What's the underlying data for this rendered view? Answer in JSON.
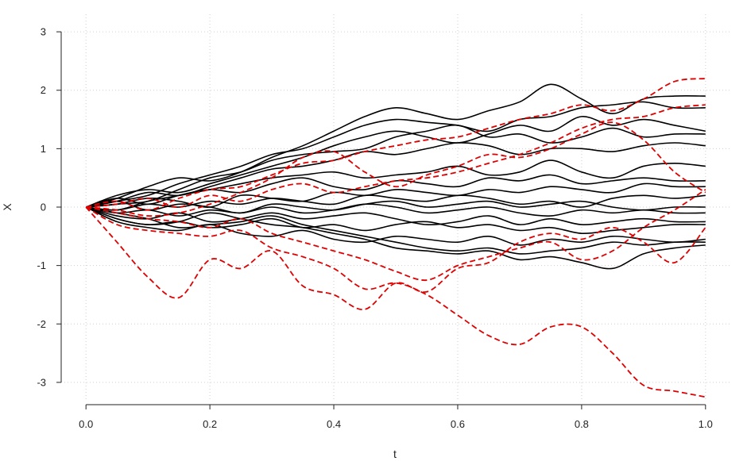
{
  "chart_data": {
    "type": "line",
    "xlabel": "t",
    "ylabel": "X",
    "xlim": [
      -0.04,
      1.04
    ],
    "ylim": [
      -3.3,
      3.3
    ],
    "xticks": [
      0.0,
      0.2,
      0.4,
      0.6,
      0.8,
      1.0
    ],
    "xtick_labels": [
      "0.0",
      "0.2",
      "0.4",
      "0.6",
      "0.8",
      "1.0"
    ],
    "yticks": [
      -3,
      -2,
      -1,
      0,
      1,
      2,
      3
    ],
    "ytick_labels": [
      "-3",
      "-2",
      "-1",
      "0",
      "1",
      "2",
      "3"
    ],
    "grid": true,
    "colors": {
      "smooth": "#000000",
      "rough": "#e00000",
      "grid": "#cfcfcf",
      "axis": "#222222"
    },
    "x": [
      0.0,
      0.05,
      0.1,
      0.15,
      0.2,
      0.25,
      0.3,
      0.35,
      0.4,
      0.45,
      0.5,
      0.55,
      0.6,
      0.65,
      0.7,
      0.75,
      0.8,
      0.85,
      0.9,
      0.95,
      1.0
    ],
    "series": [
      {
        "style": "solid",
        "values": [
          0,
          0.15,
          0.35,
          0.5,
          0.45,
          0.6,
          0.85,
          1.05,
          1.3,
          1.55,
          1.7,
          1.6,
          1.5,
          1.65,
          1.8,
          2.1,
          1.85,
          1.6,
          1.85,
          1.9,
          1.9
        ]
      },
      {
        "style": "solid",
        "values": [
          0,
          0.1,
          0.2,
          0.4,
          0.55,
          0.7,
          0.9,
          1.0,
          1.2,
          1.4,
          1.5,
          1.45,
          1.4,
          1.3,
          1.5,
          1.55,
          1.7,
          1.75,
          1.8,
          1.7,
          1.7
        ]
      },
      {
        "style": "solid",
        "values": [
          0,
          0.2,
          0.3,
          0.25,
          0.4,
          0.55,
          0.7,
          0.85,
          1.05,
          1.2,
          1.3,
          1.2,
          1.1,
          1.25,
          1.4,
          1.3,
          1.55,
          1.4,
          1.5,
          1.4,
          1.3
        ]
      },
      {
        "style": "solid",
        "values": [
          0,
          0.05,
          0.1,
          0.3,
          0.5,
          0.6,
          0.8,
          0.9,
          0.95,
          1.0,
          1.2,
          1.3,
          1.4,
          1.2,
          1.25,
          1.1,
          1.2,
          1.35,
          1.2,
          1.25,
          1.25
        ]
      },
      {
        "style": "solid",
        "values": [
          0,
          0.1,
          0.25,
          0.2,
          0.35,
          0.5,
          0.65,
          0.7,
          0.8,
          0.95,
          0.9,
          1.0,
          1.1,
          1.05,
          0.9,
          1.0,
          1.0,
          0.95,
          1.05,
          1.1,
          1.05
        ]
      },
      {
        "style": "solid",
        "values": [
          0,
          -0.05,
          0.1,
          0.2,
          0.3,
          0.4,
          0.5,
          0.55,
          0.6,
          0.5,
          0.55,
          0.6,
          0.7,
          0.55,
          0.6,
          0.8,
          0.6,
          0.5,
          0.7,
          0.75,
          0.7
        ]
      },
      {
        "style": "solid",
        "values": [
          0,
          0.15,
          0.05,
          0.2,
          0.3,
          0.25,
          0.4,
          0.5,
          0.35,
          0.3,
          0.45,
          0.4,
          0.35,
          0.5,
          0.45,
          0.55,
          0.4,
          0.45,
          0.5,
          0.45,
          0.45
        ]
      },
      {
        "style": "solid",
        "values": [
          0,
          0.05,
          0.15,
          0.1,
          0.0,
          0.2,
          0.15,
          0.1,
          0.25,
          0.2,
          0.3,
          0.25,
          0.2,
          0.3,
          0.25,
          0.35,
          0.3,
          0.25,
          0.4,
          0.35,
          0.35
        ]
      },
      {
        "style": "solid",
        "values": [
          0,
          -0.05,
          0.05,
          0.0,
          0.1,
          0.05,
          0.15,
          0.1,
          0.05,
          0.2,
          0.15,
          0.1,
          0.2,
          0.15,
          0.05,
          0.1,
          0.0,
          0.15,
          0.2,
          0.15,
          0.2
        ]
      },
      {
        "style": "solid",
        "values": [
          0,
          0.1,
          -0.05,
          0.05,
          0.0,
          -0.1,
          0.05,
          0.0,
          -0.05,
          0.05,
          0.1,
          0.0,
          0.05,
          0.1,
          0.0,
          0.05,
          0.1,
          0.0,
          -0.05,
          0.0,
          0.0
        ]
      },
      {
        "style": "solid",
        "values": [
          0,
          -0.1,
          -0.05,
          -0.15,
          -0.05,
          -0.1,
          0.0,
          -0.1,
          -0.05,
          0.05,
          0.0,
          -0.1,
          -0.05,
          0.0,
          -0.1,
          -0.15,
          -0.05,
          -0.1,
          -0.05,
          -0.1,
          -0.1
        ]
      },
      {
        "style": "solid",
        "values": [
          0,
          -0.15,
          -0.2,
          -0.1,
          -0.25,
          -0.2,
          -0.1,
          -0.2,
          -0.15,
          -0.1,
          -0.2,
          -0.3,
          -0.25,
          -0.15,
          -0.3,
          -0.2,
          -0.3,
          -0.25,
          -0.2,
          -0.25,
          -0.25
        ]
      },
      {
        "style": "solid",
        "values": [
          0,
          -0.2,
          -0.3,
          -0.25,
          -0.35,
          -0.3,
          -0.2,
          -0.35,
          -0.3,
          -0.4,
          -0.3,
          -0.25,
          -0.35,
          -0.3,
          -0.4,
          -0.35,
          -0.45,
          -0.4,
          -0.35,
          -0.3,
          -0.3
        ]
      },
      {
        "style": "solid",
        "values": [
          0,
          -0.25,
          -0.35,
          -0.4,
          -0.3,
          -0.45,
          -0.5,
          -0.4,
          -0.55,
          -0.6,
          -0.5,
          -0.55,
          -0.6,
          -0.5,
          -0.65,
          -0.55,
          -0.6,
          -0.5,
          -0.55,
          -0.6,
          -0.55
        ]
      },
      {
        "style": "solid",
        "values": [
          0,
          -0.2,
          -0.3,
          -0.25,
          -0.1,
          -0.2,
          -0.3,
          -0.35,
          -0.45,
          -0.55,
          -0.7,
          -0.75,
          -0.8,
          -0.75,
          -0.9,
          -0.85,
          -0.95,
          -1.05,
          -0.8,
          -0.7,
          -0.65
        ]
      },
      {
        "style": "solid",
        "values": [
          0,
          -0.1,
          -0.2,
          -0.35,
          -0.3,
          -0.25,
          -0.15,
          -0.3,
          -0.4,
          -0.5,
          -0.6,
          -0.7,
          -0.75,
          -0.7,
          -0.8,
          -0.75,
          -0.7,
          -0.6,
          -0.65,
          -0.6,
          -0.6
        ]
      },
      {
        "style": "dashed",
        "values": [
          0,
          -0.6,
          -1.2,
          -1.55,
          -0.9,
          -1.05,
          -0.75,
          -1.35,
          -1.5,
          -1.75,
          -1.3,
          -1.45,
          -1.05,
          -0.95,
          -0.6,
          -0.45,
          -0.55,
          -0.35,
          -0.6,
          -0.95,
          -0.35
        ]
      },
      {
        "style": "dashed",
        "values": [
          0,
          -0.3,
          -0.4,
          -0.45,
          -0.5,
          -0.4,
          -0.7,
          -0.85,
          -1.05,
          -1.4,
          -1.3,
          -1.5,
          -1.85,
          -2.2,
          -2.35,
          -2.05,
          -2.05,
          -2.5,
          -3.05,
          -3.15,
          -3.25
        ]
      },
      {
        "style": "dashed",
        "values": [
          0,
          -0.1,
          -0.2,
          -0.25,
          -0.35,
          -0.2,
          -0.45,
          -0.6,
          -0.75,
          -0.9,
          -1.1,
          -1.25,
          -1.0,
          -0.85,
          -0.7,
          -0.6,
          -0.9,
          -0.75,
          -0.35,
          -0.05,
          0.3
        ]
      },
      {
        "style": "dashed",
        "values": [
          0,
          -0.05,
          -0.15,
          -0.1,
          0.05,
          0.25,
          0.5,
          0.85,
          0.95,
          0.6,
          0.35,
          0.55,
          0.7,
          0.9,
          0.85,
          1.0,
          1.25,
          1.45,
          1.15,
          0.6,
          0.25
        ]
      },
      {
        "style": "dashed",
        "values": [
          0,
          0.1,
          -0.05,
          0.15,
          0.3,
          0.35,
          0.55,
          0.75,
          0.8,
          0.95,
          1.05,
          1.15,
          1.2,
          1.35,
          1.5,
          1.6,
          1.75,
          1.65,
          1.85,
          2.15,
          2.2
        ]
      },
      {
        "style": "dashed",
        "values": [
          0,
          0.05,
          0.15,
          0.0,
          0.2,
          0.1,
          0.3,
          0.4,
          0.25,
          0.35,
          0.45,
          0.5,
          0.6,
          0.75,
          0.9,
          1.1,
          1.35,
          1.5,
          1.55,
          1.7,
          1.75
        ]
      }
    ]
  }
}
